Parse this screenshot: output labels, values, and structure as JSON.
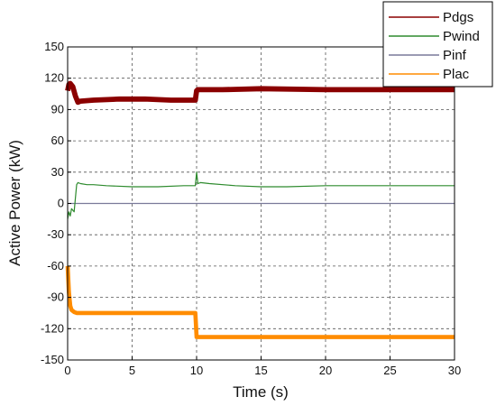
{
  "chart_data": {
    "type": "line",
    "xlabel": "Time (s)",
    "ylabel": "Active Power (kW)",
    "xlim": [
      0,
      30
    ],
    "ylim": [
      -150,
      150
    ],
    "x_ticks": [
      0,
      5,
      10,
      15,
      20,
      25,
      30
    ],
    "y_ticks": [
      -150,
      -120,
      -90,
      -60,
      -30,
      0,
      30,
      60,
      90,
      120,
      150
    ],
    "grid": "dashed",
    "legend": "top-right, outside plot area",
    "series": [
      {
        "name": "Pdgs",
        "color": "#8b0000",
        "band_width_kw": 5,
        "x": [
          0,
          0.1,
          0.2,
          0.4,
          0.6,
          0.8,
          1.0,
          2,
          4,
          6,
          8,
          9.9,
          10.0,
          10.1,
          12,
          15,
          20,
          25,
          30
        ],
        "y": [
          108,
          114,
          115,
          112,
          103,
          97,
          98,
          99,
          100,
          100,
          99,
          99,
          108,
          109,
          109,
          110,
          109,
          109,
          109
        ]
      },
      {
        "name": "Pwind",
        "color": "#2e8b2e",
        "x": [
          0,
          0.1,
          0.2,
          0.3,
          0.5,
          0.6,
          0.7,
          0.8,
          1.0,
          1.5,
          2,
          3,
          5,
          7,
          9,
          9.9,
          10.0,
          10.1,
          10.3,
          11,
          13,
          15,
          17,
          20,
          23,
          26,
          30
        ],
        "y": [
          -15,
          -8,
          -12,
          -5,
          -8,
          5,
          18,
          20,
          19,
          18,
          18,
          17,
          16,
          16,
          17,
          17,
          30,
          19,
          20,
          19,
          17,
          16,
          16,
          17,
          17,
          17,
          17
        ]
      },
      {
        "name": "Pinf",
        "color": "#7a7a9a",
        "x": [
          0,
          30
        ],
        "y": [
          0,
          0
        ]
      },
      {
        "name": "Plac",
        "color": "#ff8c00",
        "band_width_kw": 4,
        "x": [
          0,
          0.1,
          0.2,
          0.3,
          0.5,
          0.7,
          1.0,
          2,
          4,
          6,
          8,
          9.9,
          10.0,
          10.1,
          15,
          20,
          25,
          30
        ],
        "y": [
          -60,
          -85,
          -98,
          -102,
          -104,
          -105,
          -105,
          -105,
          -105,
          -105,
          -105,
          -105,
          -128,
          -128,
          -128,
          -128,
          -128,
          -128
        ]
      }
    ]
  },
  "colors": {
    "grid": "#555555",
    "axis": "#000000",
    "background": "#ffffff"
  }
}
